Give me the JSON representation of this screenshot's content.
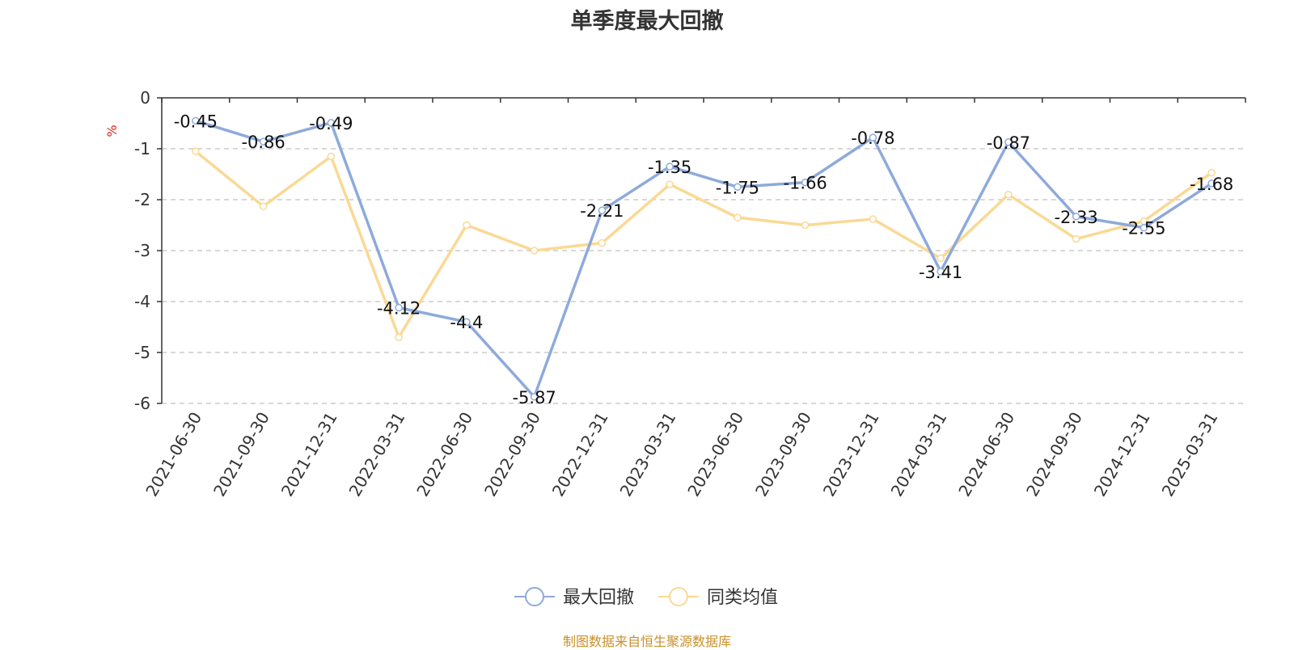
{
  "chart_data": {
    "type": "line",
    "title": "单季度最大回撤",
    "ylabel": "%",
    "ylim": [
      -6,
      0
    ],
    "yticks": [
      0,
      -1,
      -2,
      -3,
      -4,
      -5,
      -6
    ],
    "categories": [
      "2021-06-30",
      "2021-09-30",
      "2021-12-31",
      "2022-03-31",
      "2022-06-30",
      "2022-09-30",
      "2022-12-31",
      "2023-03-31",
      "2023-06-30",
      "2023-09-30",
      "2023-12-31",
      "2024-03-31",
      "2024-06-30",
      "2024-09-30",
      "2024-12-31",
      "2025-03-31"
    ],
    "series": [
      {
        "name": "最大回撤",
        "color": "#8eaadb",
        "show_labels": true,
        "values": [
          -0.45,
          -0.86,
          -0.49,
          -4.12,
          -4.4,
          -5.87,
          -2.21,
          -1.35,
          -1.75,
          -1.66,
          -0.78,
          -3.41,
          -0.87,
          -2.33,
          -2.55,
          -1.68
        ]
      },
      {
        "name": "同类均值",
        "color": "#fad994",
        "show_labels": false,
        "values": [
          -1.05,
          -2.13,
          -1.15,
          -4.7,
          -2.5,
          -3.0,
          -2.85,
          -1.7,
          -2.35,
          -2.5,
          -2.38,
          -3.15,
          -1.9,
          -2.77,
          -2.42,
          -1.47
        ]
      }
    ],
    "grid": "horizontal-dashed",
    "legend_position": "bottom"
  },
  "footer": "制图数据来自恒生聚源数据库"
}
